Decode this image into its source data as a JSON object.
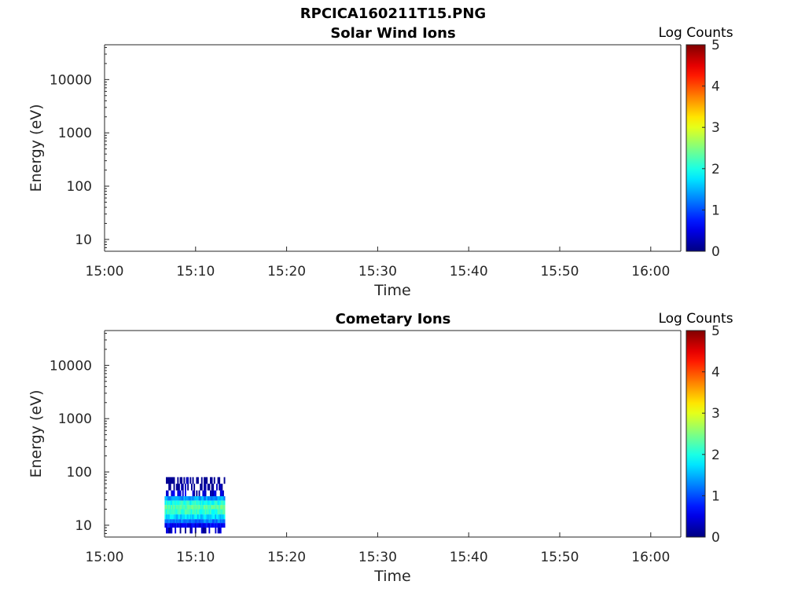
{
  "figure_title": "RPCICA160211T15.PNG",
  "chart_data": [
    {
      "type": "heatmap",
      "title": "Solar Wind Ions",
      "xlabel": "Time",
      "ylabel": "Energy (eV)",
      "x_tick_labels": [
        "15:00",
        "15:10",
        "15:20",
        "15:30",
        "15:40",
        "15:50",
        "16:00"
      ],
      "x_tick_minutes": [
        0,
        10,
        20,
        30,
        40,
        50,
        60
      ],
      "xlim_minutes": [
        0,
        63.3
      ],
      "y_scale": "log",
      "ylim": [
        6,
        45000
      ],
      "y_tick_labels": [
        "10",
        "100",
        "1000",
        "10000"
      ],
      "y_tick_values": [
        10,
        100,
        1000,
        10000
      ],
      "colorbar": {
        "label": "Log Counts",
        "range": [
          0,
          5
        ],
        "tick_labels": [
          "0",
          "1",
          "2",
          "3",
          "4",
          "5"
        ],
        "colormap": "jet"
      },
      "cells": []
    },
    {
      "type": "heatmap",
      "title": "Cometary Ions",
      "xlabel": "Time",
      "ylabel": "Energy (eV)",
      "x_tick_labels": [
        "15:00",
        "15:10",
        "15:20",
        "15:30",
        "15:40",
        "15:50",
        "16:00"
      ],
      "x_tick_minutes": [
        0,
        10,
        20,
        30,
        40,
        50,
        60
      ],
      "xlim_minutes": [
        0,
        63.3
      ],
      "y_scale": "log",
      "ylim": [
        6,
        45000
      ],
      "y_tick_labels": [
        "10",
        "100",
        "1000",
        "10000"
      ],
      "y_tick_values": [
        10,
        100,
        1000,
        10000
      ],
      "colorbar": {
        "label": "Log Counts",
        "range": [
          0,
          5
        ],
        "tick_labels": [
          "0",
          "1",
          "2",
          "3",
          "4",
          "5"
        ],
        "colormap": "jet"
      },
      "active_interval_minutes": [
        6.6,
        13.2
      ],
      "energy_bands": [
        {
          "e_min": 7,
          "e_max": 9,
          "log_counts": 0.3
        },
        {
          "e_min": 9,
          "e_max": 11,
          "log_counts": 0.6
        },
        {
          "e_min": 11,
          "e_max": 13,
          "log_counts": 1.2
        },
        {
          "e_min": 13,
          "e_max": 16,
          "log_counts": 1.7
        },
        {
          "e_min": 16,
          "e_max": 20,
          "log_counts": 2.1
        },
        {
          "e_min": 20,
          "e_max": 24,
          "log_counts": 2.3
        },
        {
          "e_min": 24,
          "e_max": 29,
          "log_counts": 2.0
        },
        {
          "e_min": 29,
          "e_max": 35,
          "log_counts": 1.4
        },
        {
          "e_min": 35,
          "e_max": 45,
          "log_counts": 0.4
        },
        {
          "e_min": 45,
          "e_max": 60,
          "log_counts": 0.15
        },
        {
          "e_min": 60,
          "e_max": 80,
          "log_counts": 0.1
        }
      ]
    }
  ]
}
